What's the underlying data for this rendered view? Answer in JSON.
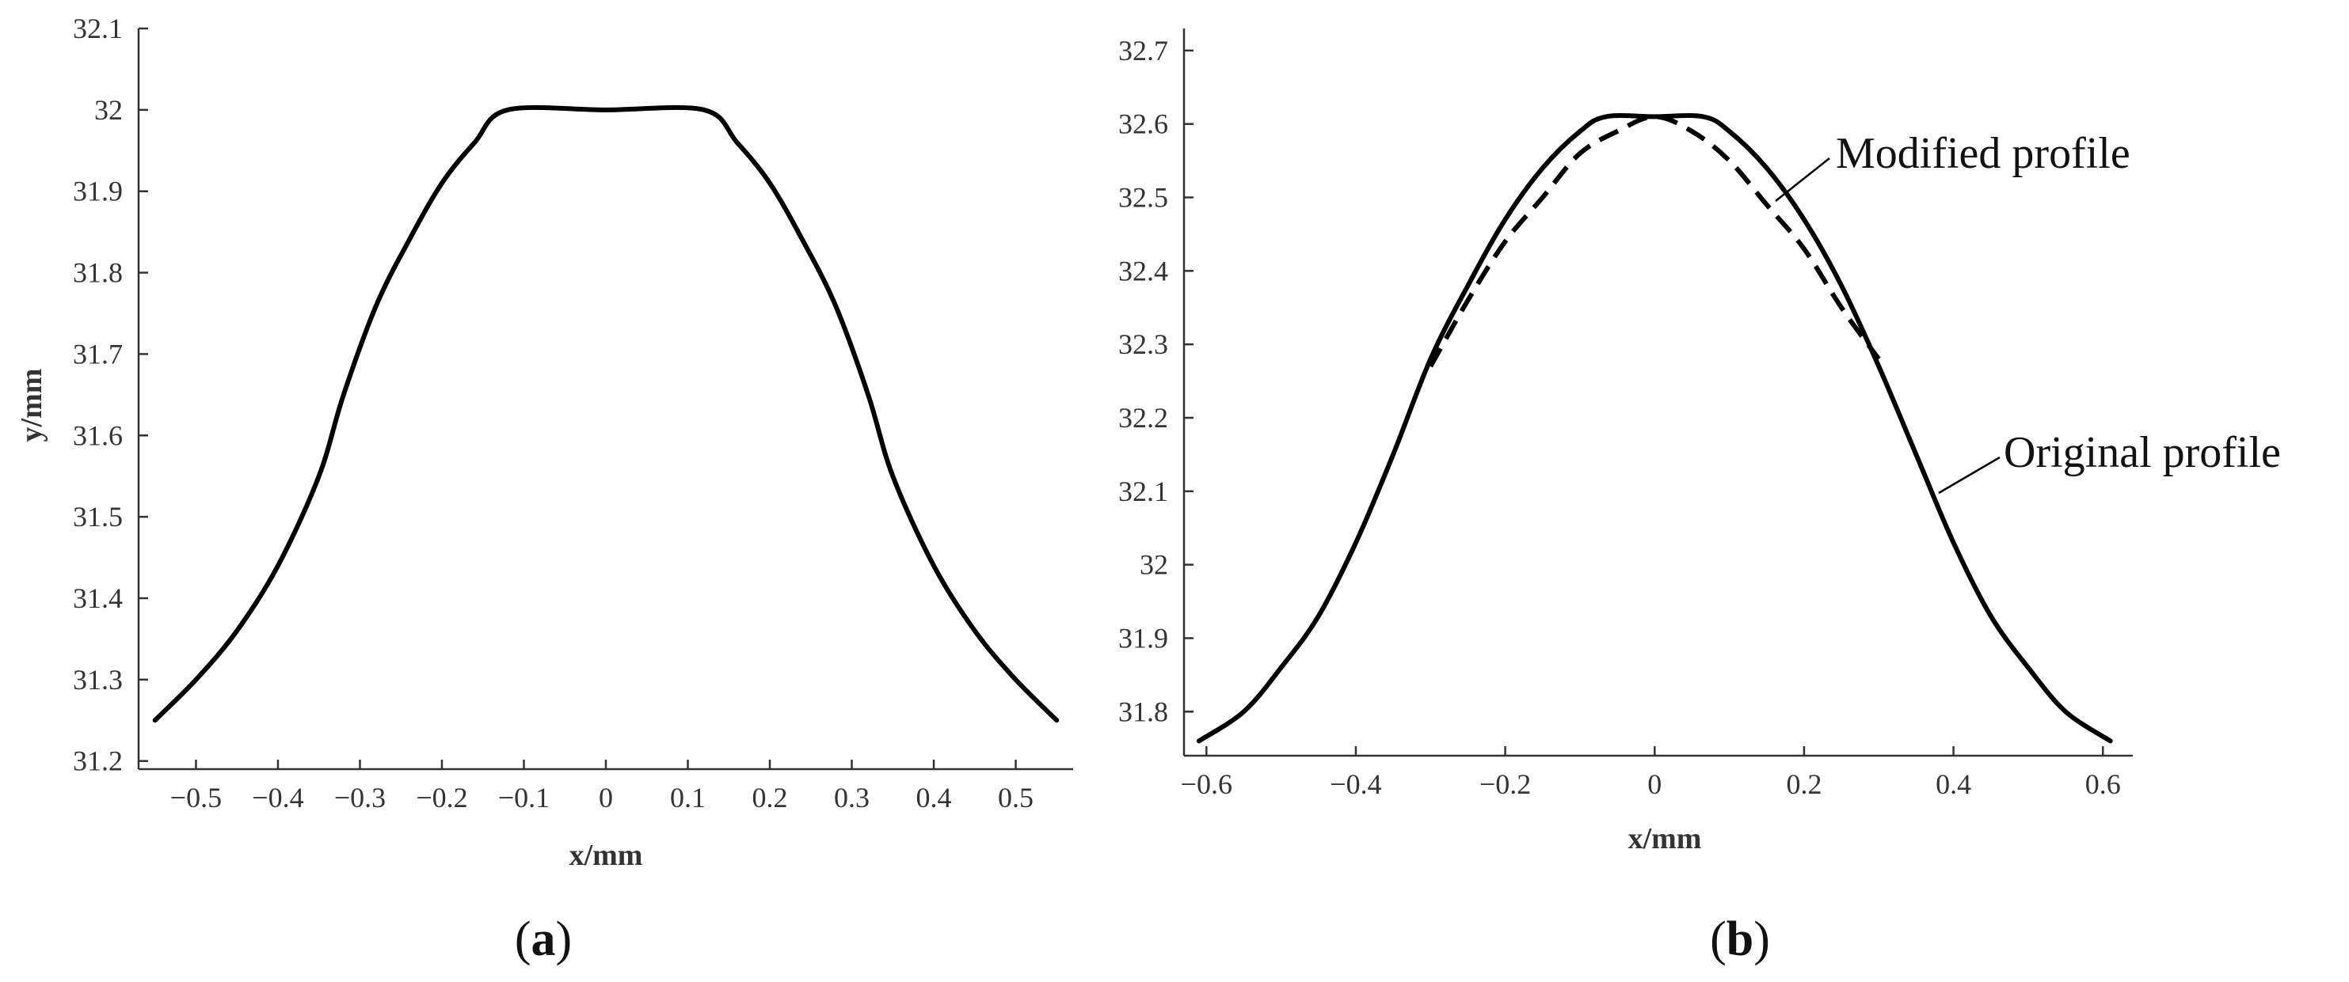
{
  "chart_data": [
    {
      "type": "line",
      "panel_label": "a",
      "xlabel": "x/mm",
      "ylabel": "y/mm",
      "xlim": [
        -0.57,
        0.57
      ],
      "ylim": [
        31.19,
        32.1
      ],
      "xticks": [
        -0.5,
        -0.4,
        -0.3,
        -0.2,
        -0.1,
        0,
        0.1,
        0.2,
        0.3,
        0.4,
        0.5
      ],
      "xtick_labels": [
        "−0.5",
        "−0.4",
        "−0.3",
        "−0.2",
        "−0.1",
        "0",
        "0.1",
        "0.2",
        "0.3",
        "0.4",
        "0.5"
      ],
      "yticks": [
        31.2,
        31.3,
        31.4,
        31.5,
        31.6,
        31.7,
        31.8,
        31.9,
        32,
        32.1
      ],
      "ytick_labels": [
        "31.2",
        "31.3",
        "31.4",
        "31.5",
        "31.6",
        "31.7",
        "31.8",
        "31.9",
        "32",
        "32.1"
      ],
      "grid": false,
      "series": [
        {
          "style": "solid",
          "x": [
            -0.55,
            -0.5,
            -0.45,
            -0.4,
            -0.35,
            -0.32,
            -0.28,
            -0.24,
            -0.2,
            -0.16,
            -0.12,
            0.0,
            0.12,
            0.16,
            0.2,
            0.24,
            0.28,
            0.32,
            0.35,
            0.4,
            0.45,
            0.5,
            0.55
          ],
          "y": [
            31.25,
            31.3,
            31.36,
            31.44,
            31.55,
            31.65,
            31.76,
            31.84,
            31.91,
            31.96,
            32.0,
            32.0,
            32.0,
            31.96,
            31.91,
            31.84,
            31.76,
            31.65,
            31.55,
            31.44,
            31.36,
            31.3,
            31.25
          ]
        }
      ]
    },
    {
      "type": "line",
      "panel_label": "b",
      "xlabel": "x/mm",
      "ylabel": "",
      "xlim": [
        -0.63,
        0.64
      ],
      "ylim": [
        31.74,
        32.73
      ],
      "xticks": [
        -0.6,
        -0.4,
        -0.2,
        0,
        0.2,
        0.4,
        0.6
      ],
      "xtick_labels": [
        "−0.6",
        "−0.4",
        "−0.2",
        "0",
        "0.2",
        "0.4",
        "0.6"
      ],
      "yticks": [
        31.8,
        31.9,
        32,
        32.1,
        32.2,
        32.3,
        32.4,
        32.5,
        32.6,
        32.7
      ],
      "ytick_labels": [
        "31.8",
        "31.9",
        "32",
        "32.1",
        "32.2",
        "32.3",
        "32.4",
        "32.5",
        "32.6",
        "32.7"
      ],
      "grid": false,
      "series": [
        {
          "name": "Original profile",
          "style": "solid",
          "x": [
            -0.61,
            -0.55,
            -0.5,
            -0.45,
            -0.4,
            -0.35,
            -0.3,
            -0.25,
            -0.2,
            -0.15,
            -0.1,
            -0.065,
            0.0,
            0.065,
            0.1,
            0.15,
            0.2,
            0.25,
            0.3,
            0.35,
            0.4,
            0.45,
            0.5,
            0.55,
            0.61
          ],
          "y": [
            31.76,
            31.8,
            31.86,
            31.93,
            32.03,
            32.15,
            32.28,
            32.38,
            32.47,
            32.54,
            32.59,
            32.61,
            32.61,
            32.61,
            32.59,
            32.54,
            32.47,
            32.38,
            32.27,
            32.15,
            32.03,
            31.93,
            31.86,
            31.8,
            31.76
          ]
        },
        {
          "name": "Modified profile",
          "style": "dashed",
          "x": [
            -0.3,
            -0.25,
            -0.2,
            -0.15,
            -0.1,
            -0.05,
            0.0,
            0.05,
            0.1,
            0.15,
            0.2,
            0.25,
            0.3
          ],
          "y": [
            32.27,
            32.36,
            32.44,
            32.5,
            32.56,
            32.59,
            32.61,
            32.59,
            32.55,
            32.49,
            32.43,
            32.35,
            32.28
          ]
        }
      ],
      "annotations": [
        {
          "text": "Modified profile",
          "x": 0.16,
          "y": 32.5
        },
        {
          "text": "Original profile",
          "x": 0.37,
          "y": 32.1
        }
      ]
    }
  ]
}
